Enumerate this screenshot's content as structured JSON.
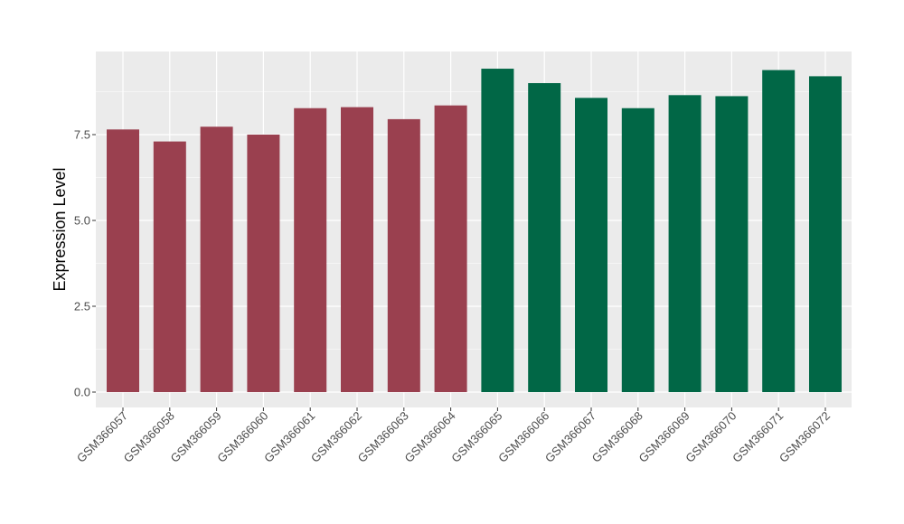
{
  "chart_data": {
    "type": "bar",
    "title": "",
    "xlabel": "",
    "ylabel": "Expression Level",
    "ylim": [
      0,
      9.8
    ],
    "yticks": [
      0.0,
      2.5,
      5.0,
      7.5
    ],
    "ytick_labels": [
      "0.0",
      "2.5",
      "5.0",
      "7.5"
    ],
    "grid": true,
    "legend": "none",
    "panel_background": "#ebebeb",
    "gridline_color": "#ffffff",
    "categories": [
      "GSM366057",
      "GSM366058",
      "GSM366059",
      "GSM366060",
      "GSM366061",
      "GSM366062",
      "GSM366063",
      "GSM366064",
      "GSM366065",
      "GSM366066",
      "GSM366067",
      "GSM366068",
      "GSM366069",
      "GSM366070",
      "GSM366071",
      "GSM366072"
    ],
    "values": [
      7.65,
      7.3,
      7.73,
      7.5,
      8.27,
      8.3,
      7.95,
      8.35,
      9.42,
      9.0,
      8.57,
      8.27,
      8.65,
      8.62,
      9.38,
      9.2
    ],
    "colors": [
      "#9a404f",
      "#9a404f",
      "#9a404f",
      "#9a404f",
      "#9a404f",
      "#9a404f",
      "#9a404f",
      "#9a404f",
      "#016746",
      "#016746",
      "#016746",
      "#016746",
      "#016746",
      "#016746",
      "#016746",
      "#016746"
    ]
  }
}
